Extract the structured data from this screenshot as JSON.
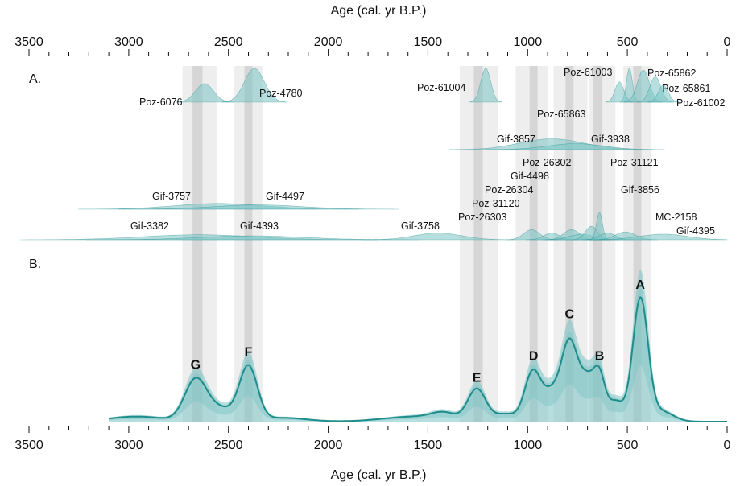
{
  "chart_data": {
    "type": "area",
    "top_axis_title": "Age (cal. yr B.P.)",
    "bottom_axis_title": "Age (cal. yr B.P.)",
    "x_reversed": true,
    "xlim": [
      3500,
      0
    ],
    "ticks": [
      3500,
      3000,
      2500,
      2000,
      1500,
      1000,
      500,
      0
    ],
    "minor_step": 100,
    "panel_labels": [
      "A.",
      "B."
    ],
    "colors": {
      "teal": "#1f8c8c",
      "teal_fill": "#7cc4c4",
      "band_light": "#eeeeee",
      "band_dark": "#d6d6d6"
    },
    "bands": [
      {
        "from": 2730,
        "to": 2560,
        "shade": "light"
      },
      {
        "from": 2680,
        "to": 2630,
        "shade": "dark"
      },
      {
        "from": 2470,
        "to": 2330,
        "shade": "light"
      },
      {
        "from": 2420,
        "to": 2380,
        "shade": "dark"
      },
      {
        "from": 1340,
        "to": 1150,
        "shade": "light"
      },
      {
        "from": 1270,
        "to": 1225,
        "shade": "dark"
      },
      {
        "from": 1060,
        "to": 900,
        "shade": "light"
      },
      {
        "from": 990,
        "to": 950,
        "shade": "dark"
      },
      {
        "from": 870,
        "to": 700,
        "shade": "light"
      },
      {
        "from": 810,
        "to": 770,
        "shade": "dark"
      },
      {
        "from": 690,
        "to": 560,
        "shade": "light"
      },
      {
        "from": 670,
        "to": 625,
        "shade": "dark"
      },
      {
        "from": 520,
        "to": 380,
        "shade": "light"
      },
      {
        "from": 470,
        "to": 430,
        "shade": "dark"
      }
    ],
    "samples": [
      {
        "name": "Poz-6076",
        "center": 2620,
        "sd": 45,
        "height": 0.55,
        "row": 1
      },
      {
        "name": "Poz-4780",
        "center": 2370,
        "sd": 50,
        "height": 1.0,
        "row": 1
      },
      {
        "name": "Poz-61004",
        "center": 1210,
        "sd": 25,
        "height": 1.0,
        "row": 1
      },
      {
        "name": "Poz-61003",
        "center": 490,
        "sd": 15,
        "height": 1.0,
        "row": 1
      },
      {
        "name": "Poz-65863",
        "center": 540,
        "sd": 22,
        "height": 0.6,
        "row": 1
      },
      {
        "name": "Poz-65862",
        "center": 420,
        "sd": 30,
        "height": 0.95,
        "row": 1
      },
      {
        "name": "Poz-65861",
        "center": 360,
        "sd": 28,
        "height": 0.75,
        "row": 1
      },
      {
        "name": "Poz-61002",
        "center": 320,
        "sd": 25,
        "height": 0.5,
        "row": 1
      },
      {
        "name": "Gif-3857",
        "center": 880,
        "sd": 160,
        "height": 0.45,
        "row": 2
      },
      {
        "name": "Gif-3938",
        "center": 760,
        "sd": 140,
        "height": 0.25,
        "row": 2
      },
      {
        "name": "Gif-3757",
        "center": 2550,
        "sd": 220,
        "height": 0.6,
        "row": 3
      },
      {
        "name": "Gif-4497",
        "center": 2350,
        "sd": 220,
        "height": 0.45,
        "row": 3
      },
      {
        "name": "Gif-3382",
        "center": 2650,
        "sd": 280,
        "height": 0.45,
        "row": 4
      },
      {
        "name": "Gif-4393",
        "center": 2380,
        "sd": 260,
        "height": 0.35,
        "row": 4
      },
      {
        "name": "Gif-3758",
        "center": 1450,
        "sd": 120,
        "height": 0.6,
        "row": 4
      },
      {
        "name": "Poz-26303",
        "center": 980,
        "sd": 40,
        "height": 0.9,
        "row": 4
      },
      {
        "name": "Poz-31120",
        "center": 880,
        "sd": 40,
        "height": 0.6,
        "row": 4
      },
      {
        "name": "Poz-26304",
        "center": 780,
        "sd": 40,
        "height": 0.9,
        "row": 4
      },
      {
        "name": "Gif-4498",
        "center": 730,
        "sd": 60,
        "height": 0.5,
        "row": 4
      },
      {
        "name": "Poz-26302",
        "center": 680,
        "sd": 30,
        "height": 1.2,
        "row": 4
      },
      {
        "name": "Poz-31121",
        "center": 640,
        "sd": 15,
        "height": 2.4,
        "row": 4
      },
      {
        "name": "Gif-3856",
        "center": 600,
        "sd": 40,
        "height": 0.6,
        "row": 4
      },
      {
        "name": "MC-2158",
        "center": 510,
        "sd": 50,
        "height": 0.7,
        "row": 4
      },
      {
        "name": "Gif-4395",
        "center": 320,
        "sd": 120,
        "height": 0.5,
        "row": 4
      }
    ],
    "peaks": [
      {
        "label": "A",
        "age": 435,
        "value": 1.0
      },
      {
        "label": "B",
        "age": 640,
        "value": 0.44
      },
      {
        "label": "C",
        "age": 790,
        "value": 0.77
      },
      {
        "label": "D",
        "age": 970,
        "value": 0.44
      },
      {
        "label": "E",
        "age": 1255,
        "value": 0.27
      },
      {
        "label": "F",
        "age": 2400,
        "value": 0.47
      },
      {
        "label": "G",
        "age": 2665,
        "value": 0.37
      }
    ],
    "curve_start": 3100,
    "curve_end": 0,
    "curve_components": [
      {
        "center": 2960,
        "sd": 140,
        "amp": 0.04
      },
      {
        "center": 2665,
        "sd": 55,
        "amp": 0.32
      },
      {
        "center": 2540,
        "sd": 70,
        "amp": 0.1
      },
      {
        "center": 2400,
        "sd": 45,
        "amp": 0.42
      },
      {
        "center": 2230,
        "sd": 120,
        "amp": 0.03
      },
      {
        "center": 1560,
        "sd": 160,
        "amp": 0.04
      },
      {
        "center": 1420,
        "sd": 60,
        "amp": 0.05
      },
      {
        "center": 1255,
        "sd": 45,
        "amp": 0.25
      },
      {
        "center": 1110,
        "sd": 60,
        "amp": 0.06
      },
      {
        "center": 975,
        "sd": 40,
        "amp": 0.38
      },
      {
        "center": 880,
        "sd": 45,
        "amp": 0.22
      },
      {
        "center": 790,
        "sd": 40,
        "amp": 0.6
      },
      {
        "center": 700,
        "sd": 40,
        "amp": 0.32
      },
      {
        "center": 640,
        "sd": 28,
        "amp": 0.3
      },
      {
        "center": 560,
        "sd": 40,
        "amp": 0.16
      },
      {
        "center": 435,
        "sd": 38,
        "amp": 0.96
      },
      {
        "center": 330,
        "sd": 60,
        "amp": 0.08
      }
    ]
  }
}
